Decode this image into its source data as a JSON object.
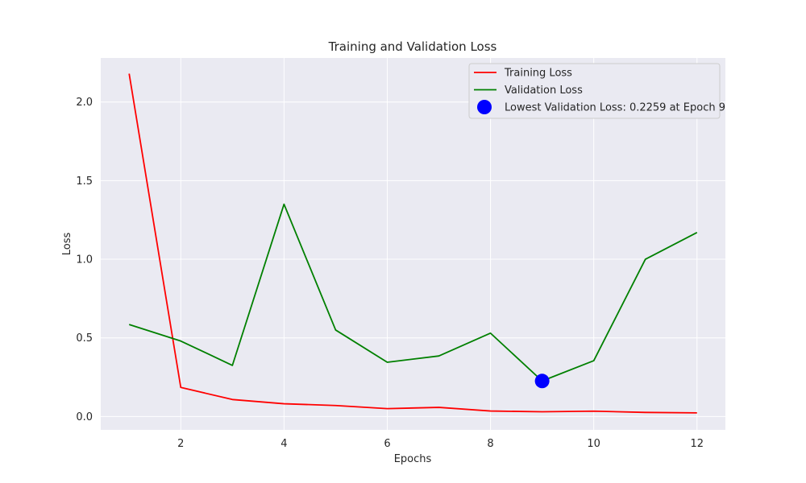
{
  "chart_data": {
    "type": "line",
    "title": "Training and Validation Loss",
    "xlabel": "Epochs",
    "ylabel": "Loss",
    "xlim": [
      0.45,
      12.55
    ],
    "ylim": [
      -0.085,
      2.28
    ],
    "x_ticks": [
      2,
      4,
      6,
      8,
      10,
      12
    ],
    "y_ticks": [
      0.0,
      0.5,
      1.0,
      1.5,
      2.0
    ],
    "x_tick_labels": [
      "2",
      "4",
      "6",
      "8",
      "10",
      "12"
    ],
    "y_tick_labels": [
      "0.0",
      "0.5",
      "1.0",
      "1.5",
      "2.0"
    ],
    "grid": true,
    "background_color": "#eaeaf2",
    "legend_placement": "upper right",
    "x": [
      1,
      2,
      3,
      4,
      5,
      6,
      7,
      8,
      9,
      10,
      11,
      12
    ],
    "series": [
      {
        "name": "Training Loss",
        "color": "#ff0000",
        "values": [
          2.18,
          0.185,
          0.108,
          0.081,
          0.07,
          0.05,
          0.058,
          0.035,
          0.03,
          0.034,
          0.026,
          0.023
        ]
      },
      {
        "name": "Validation Loss",
        "color": "#008000",
        "values": [
          0.585,
          0.48,
          0.325,
          1.35,
          0.55,
          0.345,
          0.385,
          0.53,
          0.226,
          0.355,
          1.0,
          1.17
        ]
      }
    ],
    "annotations": [
      {
        "name": "Lowest Validation Loss: 0.2259 at Epoch 9",
        "type": "point",
        "x": 9,
        "y": 0.2259,
        "color": "#0000ff"
      }
    ]
  }
}
